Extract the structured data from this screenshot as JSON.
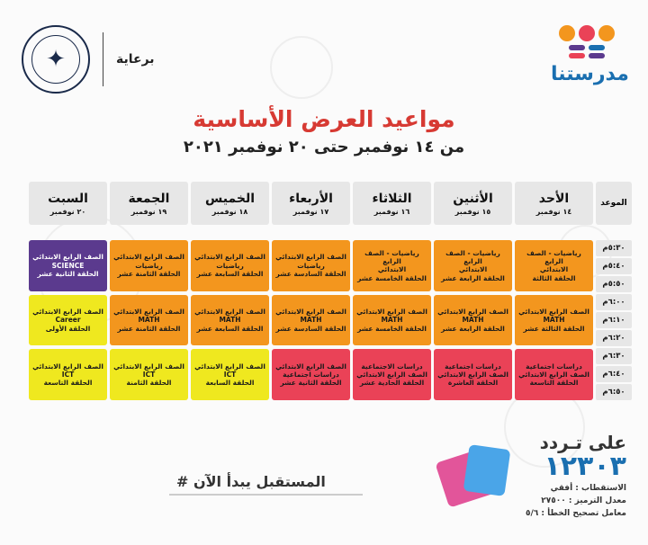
{
  "brand": {
    "name": "مدرستنا",
    "dot_colors": [
      "#f3961e",
      "#ea4257",
      "#f3961e"
    ],
    "bar_colors": [
      "#5b3a8e",
      "#1a6fb0",
      "#ea4257"
    ]
  },
  "sponsor": {
    "label": "برعاية",
    "seal_icon": "eagle-seal-icon"
  },
  "title": "مواعيد العرض الأساسية",
  "subtitle": "من ١٤ نوفمبر حتى ٢٠ نوفمبر ٢٠٢١",
  "table": {
    "time_header": "الموعد",
    "days": [
      {
        "day": "الأحد",
        "date": "١٤ نوفمبر"
      },
      {
        "day": "الأثنين",
        "date": "١٥ نوفمبر"
      },
      {
        "day": "الثلاثاء",
        "date": "١٦ نوفمبر"
      },
      {
        "day": "الأربعاء",
        "date": "١٧ نوفمبر"
      },
      {
        "day": "الخميس",
        "date": "١٨ نوفمبر"
      },
      {
        "day": "الجمعة",
        "date": "١٩ نوفمبر"
      },
      {
        "day": "السبت",
        "date": "٢٠ نوفمبر"
      }
    ],
    "times": [
      "٥:٣٠م",
      "٥:٤٠م",
      "٥:٥٠م",
      "٦:٠٠م",
      "٦:١٠م",
      "٦:٢٠م",
      "٦:٣٠م",
      "٦:٤٠م",
      "٦:٥٠م"
    ],
    "slots": [
      [
        {
          "color": "orange",
          "lines": [
            "رياضيات - الصف الرابع",
            "الابتدائي",
            "الحلقة الثالثة"
          ]
        },
        {
          "color": "orange",
          "lines": [
            "الصف الرابع الابتدائي",
            "MATH",
            "الحلقة الثالثة عشر"
          ]
        },
        {
          "color": "red",
          "lines": [
            "دراسات اجتماعية",
            "الصف الرابع الابتدائي",
            "الحلقة التاسعة"
          ]
        }
      ],
      [
        {
          "color": "orange",
          "lines": [
            "رياضيات - الصف الرابع",
            "الابتدائي",
            "الحلقة الرابعة عشر"
          ]
        },
        {
          "color": "orange",
          "lines": [
            "الصف الرابع الابتدائي",
            "MATH",
            "الحلقة الرابعة عشر"
          ]
        },
        {
          "color": "red",
          "lines": [
            "دراسات اجتماعية",
            "الصف الرابع الابتدائي",
            "الحلقة العاشرة"
          ]
        }
      ],
      [
        {
          "color": "orange",
          "lines": [
            "رياضيات - الصف الرابع",
            "الابتدائي",
            "الحلقة الخامسة عشر"
          ]
        },
        {
          "color": "orange",
          "lines": [
            "الصف الرابع الابتدائي",
            "MATH",
            "الحلقة الخامسة عشر"
          ]
        },
        {
          "color": "red",
          "lines": [
            "دراسات الاجتماعية",
            "الصف الرابع الابتدائي",
            "الحلقة الحادية عشر"
          ]
        }
      ],
      [
        {
          "color": "orange",
          "lines": [
            "الصف الرابع الابتدائي",
            "رياضيات",
            "الحلقة السادسة عشر"
          ]
        },
        {
          "color": "orange",
          "lines": [
            "الصف الرابع الابتدائي",
            "MATH",
            "الحلقة السادسة عشر"
          ]
        },
        {
          "color": "red",
          "lines": [
            "الصف الرابع الابتدائي",
            "دراسات اجتماعية",
            "الحلقة الثانية عشر"
          ]
        }
      ],
      [
        {
          "color": "orange",
          "lines": [
            "الصف الرابع الابتدائي",
            "رياضيات",
            "الحلقة السابعة عشر"
          ]
        },
        {
          "color": "orange",
          "lines": [
            "الصف الرابع الابتدائي",
            "MATH",
            "الحلقة السابعة عشر"
          ]
        },
        {
          "color": "yellow",
          "lines": [
            "الصف الرابع الابتدائي",
            "ICT",
            "الحلقة السابعة"
          ]
        }
      ],
      [
        {
          "color": "orange",
          "lines": [
            "الصف الرابع الابتدائي",
            "رياضيات",
            "الحلقة الثامنة عشر"
          ]
        },
        {
          "color": "orange",
          "lines": [
            "الصف الرابع الابتدائي",
            "MATH",
            "الحلقة الثامنة عشر"
          ]
        },
        {
          "color": "yellow",
          "lines": [
            "الصف الرابع الابتدائي",
            "ICT",
            "الحلقة الثامنة"
          ]
        }
      ],
      [
        {
          "color": "purple",
          "lines": [
            "الصف الرابع الابتدائي",
            "SCIENCE",
            "الحلقة الثانية عشر"
          ]
        },
        {
          "color": "yellow",
          "lines": [
            "الصف الرابع الابتدائي",
            "Career",
            "الحلقة الأولى"
          ]
        },
        {
          "color": "yellow",
          "lines": [
            "الصف الرابع الابتدائي",
            "ICT",
            "الحلقة التاسعة"
          ]
        }
      ]
    ]
  },
  "footer": {
    "hashtag": "# المستقبل يبدأ الآن",
    "freq_label": "على تـردد",
    "freq_number": "١٢٣٠٣",
    "polarization": "الاستقطاب : أفقي",
    "symbol_rate": "معدل الترميز : ٢٧٥٠٠",
    "fec": "معامل تصحيح الخطأ : ٥/٦"
  }
}
